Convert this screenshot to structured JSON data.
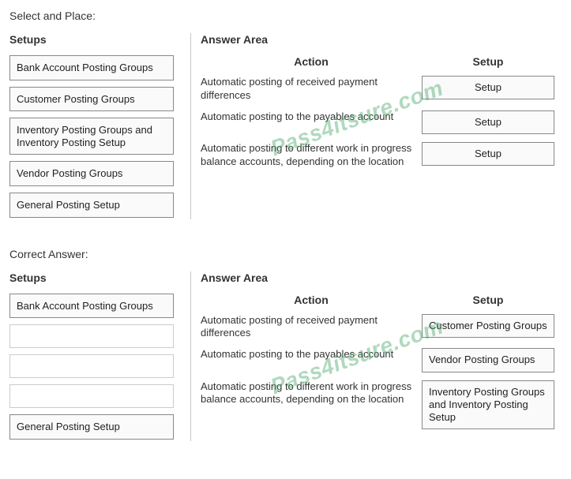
{
  "watermark": "Pass4itsure.com",
  "question": {
    "title": "Select and Place:",
    "setups_header": "Setups",
    "answer_area_header": "Answer Area",
    "action_header": "Action",
    "setup_header": "Setup",
    "setups": [
      "Bank Account Posting Groups",
      "Customer Posting Groups",
      "Inventory Posting Groups and Inventory Posting Setup",
      "Vendor Posting Groups",
      "General Posting Setup"
    ],
    "rows": [
      {
        "action": "Automatic posting of received payment differences",
        "setup": "Setup"
      },
      {
        "action": "Automatic posting to the payables account",
        "setup": "Setup"
      },
      {
        "action": "Automatic posting to different work in progress balance accounts, depending on the location",
        "setup": "Setup"
      }
    ]
  },
  "answer": {
    "title": "Correct Answer:",
    "setups_header": "Setups",
    "answer_area_header": "Answer Area",
    "action_header": "Action",
    "setup_header": "Setup",
    "setups": [
      {
        "text": "Bank Account Posting Groups",
        "empty": false
      },
      {
        "text": "",
        "empty": true
      },
      {
        "text": "",
        "empty": true
      },
      {
        "text": "",
        "empty": true
      },
      {
        "text": "General Posting Setup",
        "empty": false
      }
    ],
    "rows": [
      {
        "action": "Automatic posting of received payment differences",
        "setup": "Customer Posting Groups"
      },
      {
        "action": "Automatic posting to the payables account",
        "setup": "Vendor Posting Groups"
      },
      {
        "action": "Automatic posting to different work in progress balance accounts, depending on the location",
        "setup": "Inventory Posting Groups and Inventory Posting Setup"
      }
    ]
  }
}
